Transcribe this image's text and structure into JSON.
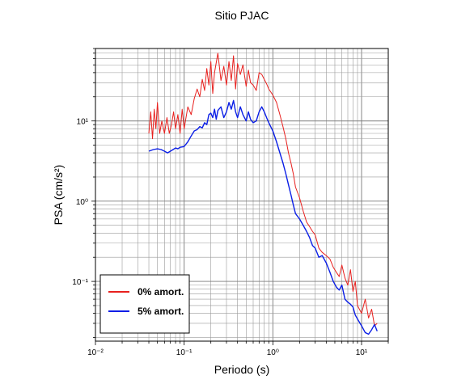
{
  "chart_data": {
    "type": "line",
    "title": "Sitio PJAC",
    "xlabel": "Periodo (s)",
    "ylabel": "PSA (cm/s²)",
    "xscale": "log",
    "yscale": "log",
    "xlim": [
      0.01,
      20
    ],
    "ylim": [
      0.018,
      80
    ],
    "x_ticks": [
      0.01,
      0.1,
      1,
      10
    ],
    "x_tick_labels": [
      "10⁻²",
      "10⁻¹",
      "10⁰",
      "10¹"
    ],
    "y_ticks": [
      0.1,
      1,
      10
    ],
    "y_tick_labels": [
      "10⁻¹",
      "10⁰",
      "10¹"
    ],
    "grid": true,
    "legend_position": "bottom-left",
    "series": [
      {
        "name": "0% amort.",
        "color": "#e8201e",
        "x": [
          0.04,
          0.042,
          0.044,
          0.046,
          0.048,
          0.05,
          0.053,
          0.056,
          0.06,
          0.064,
          0.068,
          0.072,
          0.076,
          0.08,
          0.085,
          0.09,
          0.095,
          0.1,
          0.11,
          0.12,
          0.13,
          0.14,
          0.15,
          0.16,
          0.17,
          0.18,
          0.19,
          0.2,
          0.21,
          0.22,
          0.24,
          0.26,
          0.28,
          0.3,
          0.32,
          0.34,
          0.36,
          0.38,
          0.4,
          0.43,
          0.46,
          0.5,
          0.53,
          0.56,
          0.6,
          0.65,
          0.7,
          0.75,
          0.8,
          0.85,
          0.9,
          1.0,
          1.1,
          1.2,
          1.3,
          1.4,
          1.5,
          1.6,
          1.7,
          1.8,
          2.0,
          2.2,
          2.4,
          2.6,
          2.8,
          3.0,
          3.3,
          3.6,
          4.0,
          4.4,
          4.8,
          5.2,
          5.6,
          6.0,
          6.5,
          7.0,
          7.5,
          8.0,
          8.5,
          9.0,
          10.0,
          11.0,
          12.0,
          13.0,
          14.0,
          15.0
        ],
        "values": [
          7.0,
          13.0,
          6.0,
          14.0,
          8.0,
          17.0,
          7.0,
          10.0,
          7.0,
          11.0,
          7.0,
          9.0,
          13.0,
          8.0,
          12.0,
          7.0,
          14.0,
          8.0,
          15.0,
          12.0,
          19.0,
          25.0,
          20.0,
          33.0,
          24.0,
          45.0,
          28.0,
          55.0,
          22.0,
          40.0,
          70.0,
          32.0,
          48.0,
          28.0,
          55.0,
          32.0,
          65.0,
          25.0,
          52.0,
          38.0,
          50.0,
          27.0,
          43.0,
          30.0,
          28.0,
          24.0,
          40.0,
          38.0,
          33.0,
          29.0,
          25.0,
          21.0,
          17.0,
          12.0,
          8.5,
          6.0,
          4.0,
          3.0,
          2.2,
          1.5,
          1.1,
          0.75,
          0.55,
          0.48,
          0.42,
          0.38,
          0.26,
          0.23,
          0.21,
          0.19,
          0.15,
          0.13,
          0.115,
          0.16,
          0.11,
          0.09,
          0.14,
          0.075,
          0.1,
          0.05,
          0.04,
          0.06,
          0.035,
          0.045,
          0.028,
          0.03
        ]
      },
      {
        "name": "5% amort.",
        "color": "#0a1ee6",
        "x": [
          0.04,
          0.045,
          0.05,
          0.055,
          0.06,
          0.065,
          0.07,
          0.075,
          0.08,
          0.085,
          0.09,
          0.1,
          0.11,
          0.12,
          0.13,
          0.14,
          0.15,
          0.16,
          0.17,
          0.18,
          0.19,
          0.2,
          0.21,
          0.22,
          0.23,
          0.24,
          0.26,
          0.28,
          0.3,
          0.32,
          0.34,
          0.36,
          0.38,
          0.4,
          0.43,
          0.46,
          0.5,
          0.53,
          0.56,
          0.6,
          0.65,
          0.7,
          0.75,
          0.8,
          0.85,
          0.9,
          1.0,
          1.1,
          1.2,
          1.3,
          1.4,
          1.5,
          1.6,
          1.7,
          1.8,
          2.0,
          2.2,
          2.4,
          2.6,
          2.8,
          3.0,
          3.3,
          3.6,
          4.0,
          4.4,
          4.8,
          5.2,
          5.6,
          6.0,
          6.5,
          7.0,
          7.5,
          8.0,
          8.5,
          9.0,
          10.0,
          11.0,
          12.0,
          13.0,
          14.0,
          15.0
        ],
        "values": [
          4.2,
          4.4,
          4.5,
          4.4,
          4.2,
          4.0,
          4.2,
          4.4,
          4.6,
          4.5,
          4.7,
          4.8,
          5.5,
          6.5,
          7.5,
          7.8,
          8.5,
          8.2,
          9.5,
          9.0,
          12.0,
          12.5,
          11.0,
          14.0,
          10.5,
          13.5,
          15.0,
          11.0,
          13.0,
          17.0,
          14.0,
          18.0,
          13.0,
          11.0,
          15.0,
          12.0,
          10.0,
          13.0,
          10.5,
          9.5,
          10.0,
          13.0,
          15.0,
          13.0,
          11.0,
          9.5,
          7.5,
          5.5,
          4.0,
          3.0,
          2.2,
          1.6,
          1.2,
          0.9,
          0.7,
          0.6,
          0.5,
          0.42,
          0.35,
          0.28,
          0.26,
          0.2,
          0.21,
          0.17,
          0.13,
          0.1,
          0.085,
          0.078,
          0.09,
          0.06,
          0.055,
          0.052,
          0.048,
          0.038,
          0.034,
          0.028,
          0.023,
          0.022,
          0.025,
          0.029,
          0.024
        ]
      }
    ]
  }
}
